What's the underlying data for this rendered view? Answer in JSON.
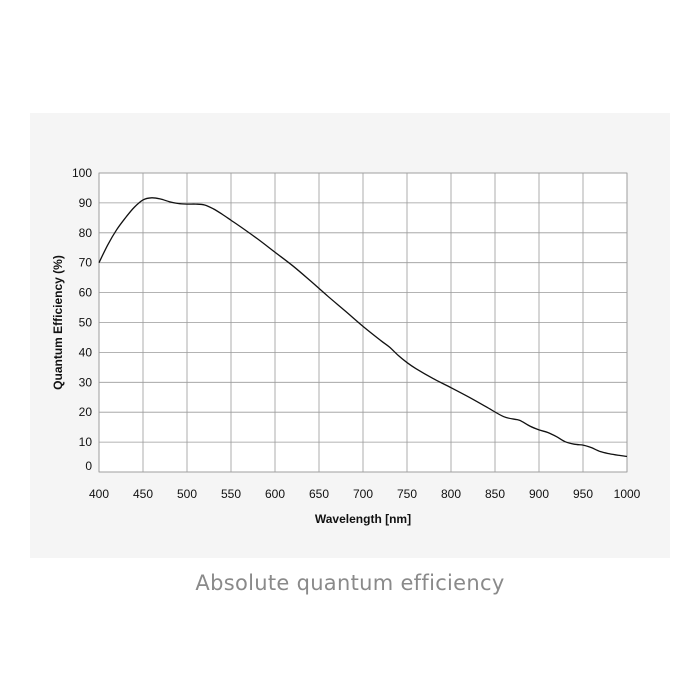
{
  "caption": "Absolute quantum efficiency",
  "chart_data": {
    "type": "line",
    "title": "",
    "xlabel": "Wavelength [nm]",
    "ylabel": "Quantum Efficiency (%)",
    "xlim": [
      400,
      1000
    ],
    "ylim": [
      0,
      100
    ],
    "xticks": [
      400,
      450,
      500,
      550,
      600,
      650,
      700,
      750,
      800,
      850,
      900,
      950,
      1000
    ],
    "yticks": [
      0,
      10,
      20,
      30,
      40,
      50,
      60,
      70,
      80,
      90,
      100
    ],
    "grid": true,
    "line_color": "#111111",
    "grid_color": "#9a9a9a",
    "series": [
      {
        "x": [
          400,
          410,
          420,
          430,
          440,
          450,
          460,
          470,
          480,
          490,
          500,
          510,
          520,
          530,
          540,
          550,
          560,
          580,
          600,
          620,
          640,
          660,
          680,
          700,
          720,
          730,
          740,
          750,
          760,
          780,
          800,
          820,
          840,
          860,
          875,
          880,
          890,
          900,
          910,
          920,
          930,
          940,
          950,
          955,
          960,
          970,
          980,
          990,
          1000
        ],
        "y": [
          70,
          76,
          81,
          85,
          88.5,
          91,
          91.7,
          91.3,
          90.4,
          89.8,
          89.6,
          89.6,
          89.3,
          88,
          86.2,
          84.2,
          82.2,
          78,
          73.5,
          69,
          64,
          58.8,
          53.8,
          48.7,
          44,
          41.8,
          39,
          36.6,
          34.6,
          31.2,
          28.2,
          25.1,
          21.8,
          18.5,
          17.5,
          17,
          15.3,
          14.1,
          13.2,
          11.8,
          10.1,
          9.3,
          9,
          8.6,
          8.1,
          6.8,
          6.1,
          5.6,
          5.2
        ]
      }
    ]
  }
}
